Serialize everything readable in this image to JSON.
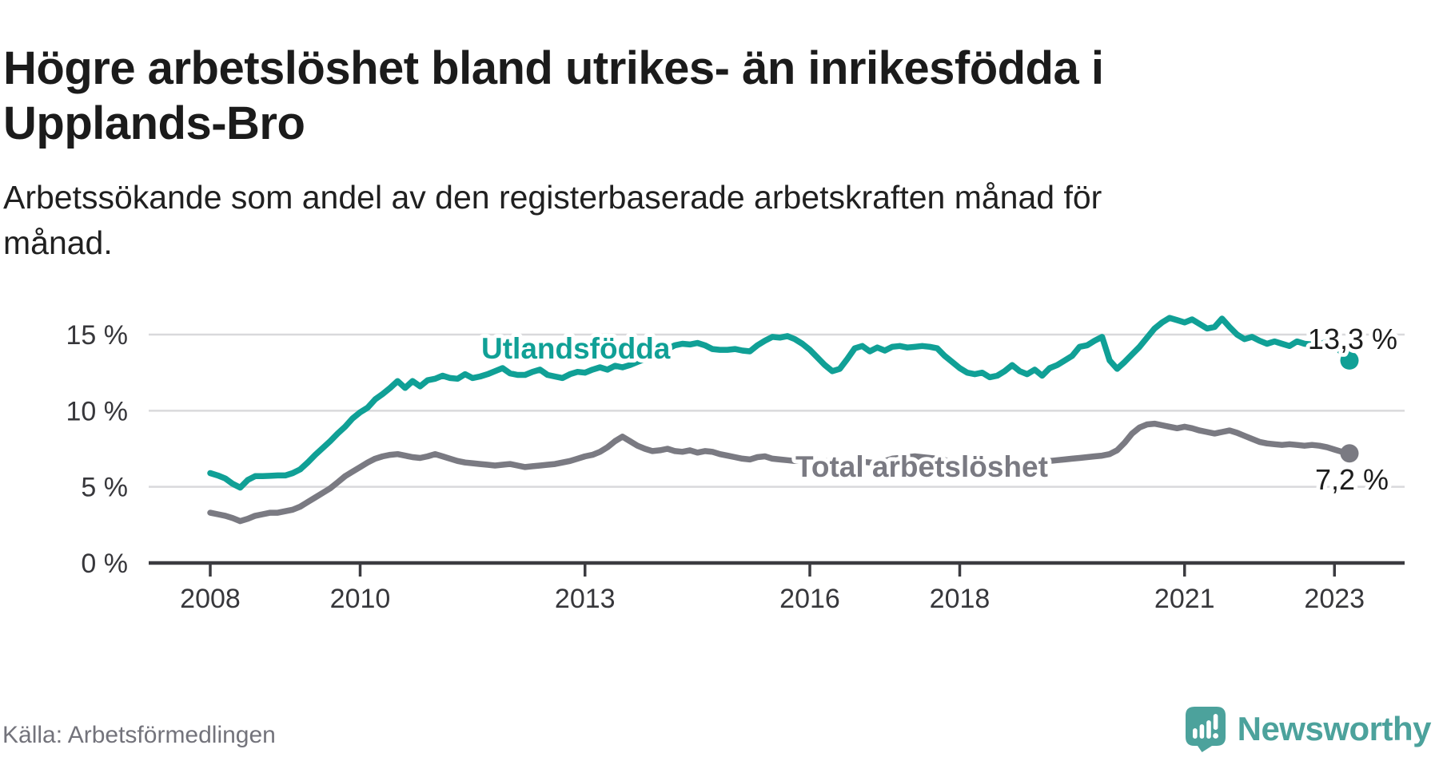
{
  "header": {
    "title_lines": [
      "Högre arbetslöshet bland utrikes- än inrikesfödda i",
      "Upplands-Bro"
    ],
    "subtitle_lines": [
      "Arbetssökande som andel av den registerbaserade arbetskraften månad för",
      "månad."
    ]
  },
  "footer": {
    "source": "Källa: Arbetsförmedlingen",
    "brand": "Newsworthy"
  },
  "colors": {
    "teal": "#10a096",
    "gray": "#7a7a82",
    "axis": "#3b3b40",
    "grid": "#d9d9dc",
    "tick_text": "#37373b",
    "value_text": "#1d1d1d",
    "brand_teal": "#4ca29c"
  },
  "chart_data": {
    "type": "line",
    "title": "Arbetssökande som andel av den registerbaserade arbetskraften månad för månad",
    "xlabel": "",
    "ylabel": "",
    "x_start": 2008.0,
    "x_step": 0.1,
    "x_ticks": [
      2008,
      2010,
      2013,
      2016,
      2018,
      2021,
      2023
    ],
    "y_ticks": [
      0,
      5,
      10,
      15
    ],
    "y_tick_suffix": " %",
    "ylim": [
      0,
      17
    ],
    "grid": true,
    "legend_position": "inline-labels",
    "series": [
      {
        "id": "utlandsfodda",
        "name": "Utlandsfödda",
        "color_key": "teal",
        "end_label": "13,3 %",
        "end_value": 13.3,
        "values": [
          5.9,
          5.75,
          5.55,
          5.2,
          4.95,
          5.45,
          5.7,
          5.7,
          5.72,
          5.75,
          5.75,
          5.9,
          6.15,
          6.6,
          7.1,
          7.55,
          8.0,
          8.5,
          8.95,
          9.5,
          9.9,
          10.2,
          10.75,
          11.1,
          11.5,
          11.95,
          11.5,
          11.95,
          11.6,
          12.0,
          12.1,
          12.3,
          12.15,
          12.1,
          12.4,
          12.15,
          12.25,
          12.4,
          12.6,
          12.8,
          12.45,
          12.35,
          12.35,
          12.55,
          12.7,
          12.35,
          12.25,
          12.15,
          12.4,
          12.55,
          12.5,
          12.7,
          12.85,
          12.7,
          12.95,
          12.85,
          13.0,
          13.2,
          13.4,
          13.55,
          13.8,
          14.05,
          14.3,
          14.4,
          14.35,
          14.45,
          14.3,
          14.05,
          14.0,
          14.0,
          14.05,
          13.95,
          13.9,
          14.3,
          14.6,
          14.85,
          14.8,
          14.9,
          14.7,
          14.4,
          14.0,
          13.5,
          13.0,
          12.6,
          12.75,
          13.4,
          14.1,
          14.25,
          13.9,
          14.15,
          13.95,
          14.2,
          14.25,
          14.15,
          14.2,
          14.25,
          14.2,
          14.1,
          13.6,
          13.2,
          12.8,
          12.5,
          12.4,
          12.5,
          12.2,
          12.3,
          12.6,
          13.0,
          12.6,
          12.4,
          12.7,
          12.3,
          12.8,
          13.0,
          13.3,
          13.6,
          14.2,
          14.3,
          14.6,
          14.85,
          13.3,
          12.75,
          13.2,
          13.7,
          14.2,
          14.8,
          15.4,
          15.8,
          16.1,
          15.95,
          15.8,
          16.0,
          15.7,
          15.4,
          15.5,
          16.05,
          15.5,
          15.0,
          14.7,
          14.85,
          14.6,
          14.4,
          14.55,
          14.4,
          14.25,
          14.55,
          14.4,
          14.35,
          14.4,
          14.5,
          14.3,
          13.8,
          13.3
        ]
      },
      {
        "id": "total-arbetsloshet",
        "name": "Total arbetslöshet",
        "color_key": "gray",
        "end_label": "7,2 %",
        "end_value": 7.2,
        "values": [
          3.3,
          3.2,
          3.1,
          2.95,
          2.75,
          2.9,
          3.1,
          3.2,
          3.3,
          3.3,
          3.4,
          3.5,
          3.7,
          4.0,
          4.3,
          4.6,
          4.9,
          5.3,
          5.7,
          6.0,
          6.3,
          6.6,
          6.85,
          7.0,
          7.1,
          7.15,
          7.05,
          6.95,
          6.9,
          7.0,
          7.15,
          7.0,
          6.85,
          6.7,
          6.6,
          6.55,
          6.5,
          6.45,
          6.4,
          6.45,
          6.5,
          6.4,
          6.3,
          6.35,
          6.4,
          6.45,
          6.5,
          6.6,
          6.7,
          6.85,
          7.0,
          7.1,
          7.3,
          7.6,
          8.0,
          8.3,
          8.0,
          7.7,
          7.5,
          7.35,
          7.4,
          7.5,
          7.35,
          7.3,
          7.4,
          7.25,
          7.35,
          7.3,
          7.15,
          7.05,
          6.95,
          6.85,
          6.8,
          6.95,
          7.0,
          6.85,
          6.8,
          6.75,
          6.7,
          6.75,
          6.8,
          6.75,
          6.7,
          6.65,
          6.6,
          6.55,
          6.6,
          6.65,
          6.6,
          6.55,
          6.7,
          6.85,
          6.9,
          6.95,
          7.0,
          6.95,
          6.9,
          6.85,
          6.75,
          6.65,
          6.55,
          6.5,
          6.45,
          6.4,
          6.35,
          6.35,
          6.4,
          6.45,
          6.5,
          6.55,
          6.6,
          6.65,
          6.7,
          6.75,
          6.8,
          6.85,
          6.9,
          6.95,
          7.0,
          7.05,
          7.15,
          7.4,
          7.9,
          8.5,
          8.9,
          9.1,
          9.15,
          9.05,
          8.95,
          8.85,
          8.95,
          8.85,
          8.7,
          8.6,
          8.5,
          8.6,
          8.7,
          8.55,
          8.35,
          8.15,
          7.95,
          7.85,
          7.8,
          7.75,
          7.8,
          7.75,
          7.7,
          7.75,
          7.7,
          7.6,
          7.45,
          7.3,
          7.2
        ]
      }
    ]
  }
}
